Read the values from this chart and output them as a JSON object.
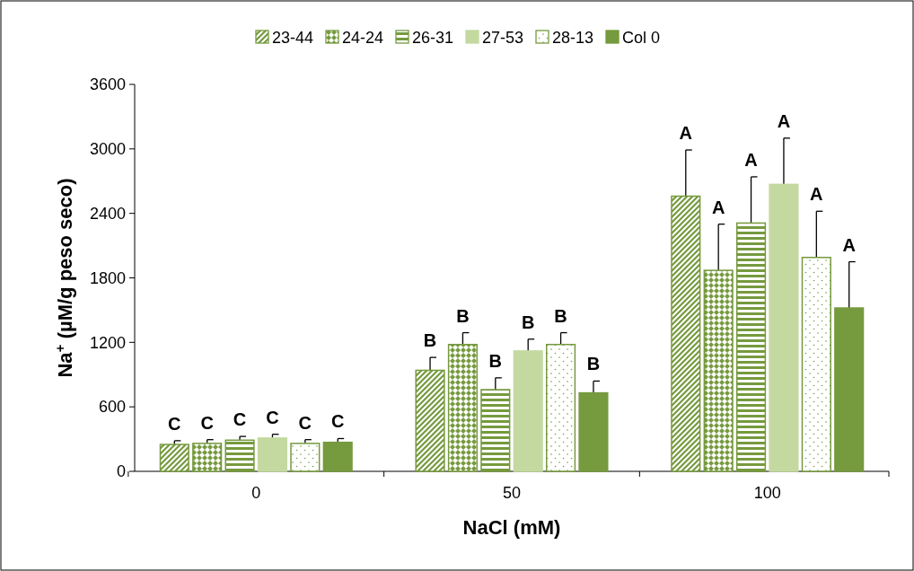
{
  "chart_data": {
    "type": "bar",
    "xlabel": "NaCl (mM)",
    "ylabel": "Na$^{+}$ (µM/g peso seco)",
    "categories": [
      "0",
      "50",
      "100"
    ],
    "ylim": [
      0,
      3600
    ],
    "yticks": [
      0,
      600,
      1200,
      1800,
      2400,
      3000,
      3600
    ],
    "grid": false,
    "legend": "top",
    "series": [
      {
        "name": "23-44",
        "color": "#769a3e",
        "values": [
          250,
          940,
          2560
        ],
        "errors": [
          35,
          120,
          430
        ]
      },
      {
        "name": "24-24",
        "color": "#769a3e",
        "values": [
          260,
          1180,
          1870
        ],
        "errors": [
          35,
          110,
          430
        ]
      },
      {
        "name": "26-31",
        "color": "#769a3e",
        "values": [
          290,
          760,
          2310
        ],
        "errors": [
          35,
          110,
          430
        ]
      },
      {
        "name": "27-53",
        "color": "#c4d9a0",
        "values": [
          310,
          1120,
          2670
        ],
        "errors": [
          35,
          110,
          430
        ]
      },
      {
        "name": "28-13",
        "color": "#769a3e",
        "values": [
          260,
          1180,
          1990
        ],
        "errors": [
          35,
          110,
          430
        ]
      },
      {
        "name": "Col 0",
        "color": "#769a3e",
        "values": [
          270,
          730,
          1520
        ],
        "errors": [
          35,
          110,
          430
        ]
      }
    ],
    "annotations": [
      "C",
      "C",
      "C",
      "C",
      "C",
      "C",
      "B",
      "B",
      "B",
      "B",
      "B",
      "B",
      "A",
      "A",
      "A",
      "A",
      "A",
      "A"
    ]
  }
}
